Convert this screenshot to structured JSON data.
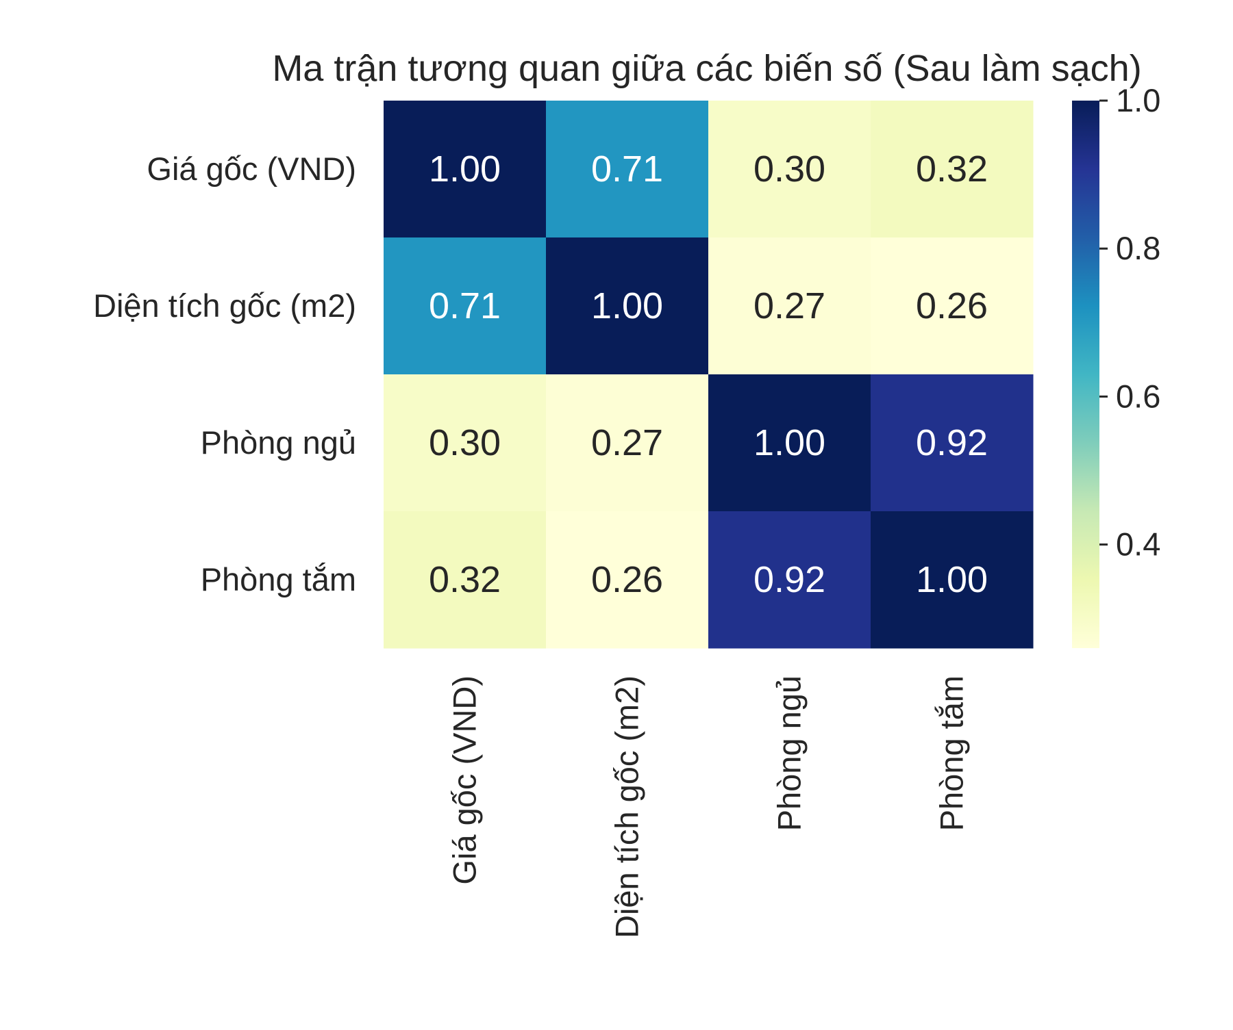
{
  "chart_data": {
    "type": "heatmap",
    "title": "Ma trận tương quan giữa các biến số (Sau làm sạch)",
    "row_labels": [
      "Giá gốc (VND)",
      "Diện tích gốc (m2)",
      "Phòng ngủ",
      "Phòng tắm"
    ],
    "col_labels": [
      "Giá gốc (VND)",
      "Diện tích gốc (m2)",
      "Phòng ngủ",
      "Phòng tắm"
    ],
    "values": [
      [
        1.0,
        0.71,
        0.3,
        0.32
      ],
      [
        0.71,
        1.0,
        0.27,
        0.26
      ],
      [
        0.3,
        0.27,
        1.0,
        0.92
      ],
      [
        0.32,
        0.26,
        0.92,
        1.0
      ]
    ],
    "cell_labels": [
      [
        "1.00",
        "0.71",
        "0.30",
        "0.32"
      ],
      [
        "0.71",
        "1.00",
        "0.27",
        "0.26"
      ],
      [
        "0.30",
        "0.27",
        "1.00",
        "0.92"
      ],
      [
        "0.32",
        "0.26",
        "0.92",
        "1.00"
      ]
    ],
    "colormap": "YlGnBu",
    "colorbar": {
      "range": [
        0.26,
        1.0
      ],
      "ticks": [
        0.4,
        0.6,
        0.8,
        1.0
      ],
      "tick_labels": [
        "0.4",
        "0.6",
        "0.8",
        "1.0"
      ]
    }
  }
}
